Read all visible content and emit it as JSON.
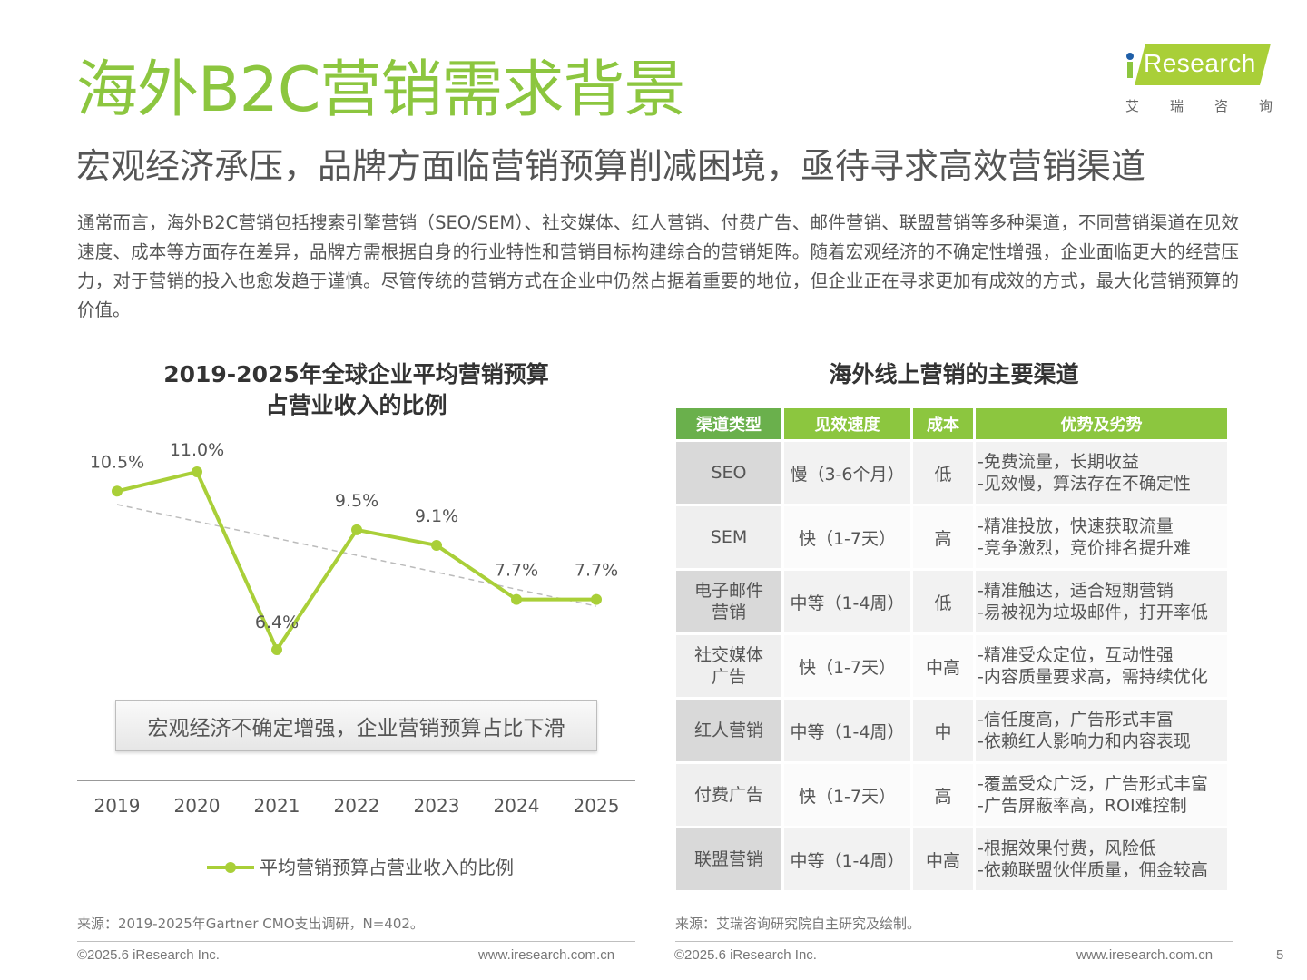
{
  "header": {
    "title": "海外B2C营销需求背景",
    "subtitle": "宏观经济承压，品牌方面临营销预算削减困境，亟待寻求高效营销渠道",
    "logo": {
      "brand": "Research",
      "cn_chars": [
        "艾",
        "瑞",
        "咨",
        "询"
      ]
    }
  },
  "intro": "通常而言，海外B2C营销包括搜索引擎营销（SEO/SEM）、社交媒体、红人营销、付费广告、邮件营销、联盟营销等多种渠道，不同营销渠道在见效速度、成本等方面存在差异，品牌方需根据自身的行业特性和营销目标构建综合的营销矩阵。随着宏观经济的不确定性增强，企业面临更大的经营压力，对于营销的投入也愈发趋于谨慎。尽管传统的营销方式在企业中仍然占据着重要的地位，但企业正在寻求更加有成效的方式，最大化营销预算的价值。",
  "chart_data": {
    "type": "line",
    "title": "2019-2025年全球企业平均营销预算占营业收入的比例",
    "title_line1": "2019-2025年全球企业平均营销预算",
    "title_line2": "占营业收入的比例",
    "categories": [
      "2019",
      "2020",
      "2021",
      "2022",
      "2023",
      "2024",
      "2025"
    ],
    "series": [
      {
        "name": "平均营销预算占营业收入的比例",
        "values": [
          10.5,
          11.0,
          6.4,
          9.5,
          9.1,
          7.7,
          7.7
        ],
        "labels": [
          "10.5%",
          "11.0%",
          "6.4%",
          "9.5%",
          "9.1%",
          "7.7%",
          "7.7%"
        ],
        "color": "#a9cf38"
      }
    ],
    "trendline": {
      "style": "dashed",
      "color": "#bbbbbb",
      "from": 10.2,
      "to": 7.5
    },
    "xlabel": "",
    "ylabel": "",
    "ylim": [
      5,
      12
    ],
    "grid": false,
    "legend_position": "bottom",
    "annotation": "宏观经济不确定增强，企业营销预算占比下滑"
  },
  "table": {
    "title": "海外线上营销的主要渠道",
    "headers": [
      "渠道类型",
      "见效速度",
      "成本",
      "优势及劣势"
    ],
    "rows": [
      {
        "channel": "SEO",
        "speed": "慢（3-6个月）",
        "cost": "低",
        "pros": "-免费流量，长期收益",
        "cons": "-见效慢，算法存在不确定性"
      },
      {
        "channel": "SEM",
        "speed": "快（1-7天）",
        "cost": "高",
        "pros": "-精准投放，快速获取流量",
        "cons": "-竞争激烈，竞价排名提升难"
      },
      {
        "channel": "电子邮件营销",
        "channel_l1": "电子邮件",
        "channel_l2": "营销",
        "speed": "中等（1-4周）",
        "cost": "低",
        "pros": "-精准触达，适合短期营销",
        "cons": "-易被视为垃圾邮件，打开率低"
      },
      {
        "channel": "社交媒体广告",
        "channel_l1": "社交媒体",
        "channel_l2": "广告",
        "speed": "快（1-7天）",
        "cost": "中高",
        "pros": "-精准受众定位，互动性强",
        "cons": "-内容质量要求高，需持续优化"
      },
      {
        "channel": "红人营销",
        "speed": "中等（1-4周）",
        "cost": "中",
        "pros": "-信任度高，广告形式丰富",
        "cons": "-依赖红人影响力和内容表现"
      },
      {
        "channel": "付费广告",
        "speed": "快（1-7天）",
        "cost": "高",
        "pros": "-覆盖受众广泛，广告形式丰富",
        "cons": "-广告屏蔽率高，ROI难控制"
      },
      {
        "channel": "联盟营销",
        "speed": "中等（1-4周）",
        "cost": "中高",
        "pros": "-根据效果付费，风险低",
        "cons": "-依赖联盟伙伴质量，佣金较高"
      }
    ]
  },
  "footer": {
    "left_source": "来源：2019-2025年Gartner CMO支出调研，N=402。",
    "right_source": "来源：艾瑞咨询研究院自主研究及绘制。",
    "copyright": "©2025.6 iResearch Inc.",
    "website": "www.iresearch.com.cn",
    "page_number": "5"
  },
  "colors": {
    "title_green": "#8cc63f",
    "line_green": "#a9cf38",
    "header_dark_green": "#6ab04c"
  }
}
